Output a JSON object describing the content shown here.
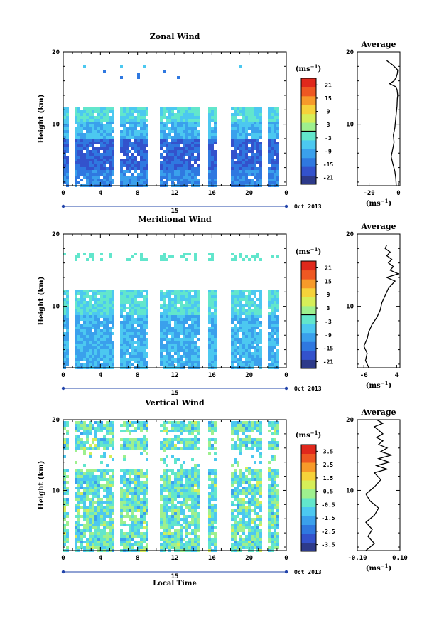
{
  "footer_label": "Local Time",
  "chart_data": [
    {
      "type": "heatmap",
      "title": "Zonal Wind",
      "ylabel": "Height (km)",
      "xlim": [
        0,
        24
      ],
      "ylim": [
        1.5,
        20
      ],
      "x_tick_labels": [
        "0",
        "4",
        "8",
        "12",
        "16",
        "20",
        "0"
      ],
      "y_tick_labels": [
        "20",
        "10"
      ],
      "date_label": "15",
      "month_label": "Oct 2013",
      "colorbar": {
        "unit_base": "(ms",
        "unit_exp": "−1",
        "unit_close": ")",
        "range": [
          -24,
          24
        ],
        "ticks": [
          "21",
          "15",
          "9",
          "3",
          "-3",
          "-9",
          "-15",
          "-21"
        ],
        "contour_value": 0
      },
      "data_gaps_hours": [
        [
          0.6,
          1.0
        ],
        [
          5.4,
          5.9
        ],
        [
          8.9,
          10.1
        ],
        [
          14.6,
          15.4
        ],
        [
          16.4,
          18.0
        ],
        [
          21.4,
          22.0
        ],
        [
          23.2,
          24.0
        ]
      ],
      "upper_cutoff_km": 12.5,
      "colormap": [
        "#2d3a8a",
        "#3352cc",
        "#2f78e0",
        "#3aa0ec",
        "#4cc8f0",
        "#62e6cc",
        "#9ef08e",
        "#d6ee58",
        "#f6d23a",
        "#f79a2a",
        "#ee5822",
        "#e0281c"
      ],
      "profile": {
        "title": "Average",
        "xlabel_base": "(ms",
        "xlabel_exp": "−1",
        "xlabel_close": ")",
        "xlim": [
          -28,
          1
        ],
        "x_tick_labels": [
          "-20",
          "0"
        ],
        "y_tick_labels": [
          "20",
          "10"
        ],
        "height": [
          1.5,
          2.5,
          3.5,
          4.5,
          5.5,
          6.5,
          7.5,
          8.5,
          9.5,
          10.5,
          11.5,
          12.5,
          13.5,
          14.0,
          14.8,
          15.2,
          15.6,
          16.0,
          16.5,
          17.0,
          17.5,
          18.2,
          18.8
        ],
        "values": [
          -1.5,
          -1.8,
          -2.5,
          -3.8,
          -5.0,
          -4.0,
          -3.0,
          -3.5,
          -2.5,
          -2.0,
          -1.5,
          -1.0,
          -0.8,
          -0.5,
          -1.0,
          -2.0,
          -6.0,
          -3.0,
          -1.5,
          -0.8,
          -0.5,
          -4.0,
          -8.0
        ]
      }
    },
    {
      "type": "heatmap",
      "title": "Meridional Wind",
      "ylabel": "Height (km)",
      "xlim": [
        0,
        24
      ],
      "ylim": [
        1.5,
        20
      ],
      "x_tick_labels": [
        "0",
        "4",
        "8",
        "12",
        "16",
        "20",
        "0"
      ],
      "y_tick_labels": [
        "20",
        "10"
      ],
      "date_label": "15",
      "month_label": "Oct 2013",
      "colorbar": {
        "unit_base": "(ms",
        "unit_exp": "−1",
        "unit_close": ")",
        "range": [
          -24,
          24
        ],
        "ticks": [
          "21",
          "15",
          "9",
          "3",
          "-3",
          "-9",
          "-15",
          "-21"
        ],
        "contour_value": 0
      },
      "data_gaps_hours": [
        [
          0.6,
          1.0
        ],
        [
          5.4,
          5.9
        ],
        [
          8.9,
          10.1
        ],
        [
          14.6,
          15.4
        ],
        [
          16.4,
          18.0
        ],
        [
          21.4,
          22.0
        ],
        [
          23.2,
          24.0
        ]
      ],
      "upper_cutoff_km": 12.5,
      "colormap": [
        "#2d3a8a",
        "#3352cc",
        "#2f78e0",
        "#3aa0ec",
        "#4cc8f0",
        "#62e6cc",
        "#9ef08e",
        "#d6ee58",
        "#f6d23a",
        "#f79a2a",
        "#ee5822",
        "#e0281c"
      ],
      "profile": {
        "title": "Average",
        "xlabel_base": "(ms",
        "xlabel_exp": "−1",
        "xlabel_close": ")",
        "xlim": [
          -8,
          5
        ],
        "x_tick_labels": [
          "-6",
          "4"
        ],
        "y_tick_labels": [
          "20",
          "10"
        ],
        "height": [
          1.5,
          2.5,
          3.5,
          4.5,
          5.5,
          6.5,
          7.5,
          8.5,
          9.5,
          10.5,
          11.5,
          12.5,
          13.0,
          13.5,
          14.0,
          14.5,
          15.0,
          15.5,
          16.0,
          16.5,
          17.0,
          17.5,
          18.0,
          18.5
        ],
        "values": [
          -4.5,
          -5.5,
          -5.0,
          -6.0,
          -5.0,
          -4.5,
          -3.5,
          -2.0,
          -1.0,
          -0.5,
          0.5,
          1.5,
          2.5,
          3.5,
          1.0,
          4.5,
          2.0,
          3.0,
          1.5,
          2.5,
          1.0,
          2.0,
          0.5,
          1.0
        ]
      }
    },
    {
      "type": "heatmap",
      "title": "Vertical Wind",
      "ylabel": "Height (km)",
      "xlabel": "Local Time",
      "xlim": [
        0,
        24
      ],
      "ylim": [
        1.5,
        20
      ],
      "x_tick_labels": [
        "0",
        "4",
        "8",
        "12",
        "16",
        "20",
        "0"
      ],
      "y_tick_labels": [
        "20",
        "10"
      ],
      "date_label": "15",
      "month_label": "Oct 2013",
      "colorbar": {
        "unit_base": "(ms",
        "unit_exp": "−1",
        "unit_close": ")",
        "range": [
          -4,
          4
        ],
        "ticks": [
          "3.5",
          "2.5",
          "1.5",
          "0.5",
          "-0.5",
          "-1.5",
          "-2.5",
          "-3.5"
        ]
      },
      "data_gaps_hours": [
        [
          0.6,
          1.0
        ],
        [
          5.4,
          5.9
        ],
        [
          8.9,
          10.1
        ],
        [
          14.6,
          15.4
        ],
        [
          16.4,
          18.0
        ],
        [
          21.4,
          22.0
        ],
        [
          23.2,
          24.0
        ]
      ],
      "upper_cutoff_km": 20,
      "colormap": [
        "#2d3a8a",
        "#3352cc",
        "#2f78e0",
        "#3aa0ec",
        "#4cc8f0",
        "#62e6cc",
        "#9ef08e",
        "#d6ee58",
        "#f6d23a",
        "#f79a2a",
        "#ee5822",
        "#e0281c"
      ],
      "profile": {
        "title": "Average",
        "xlabel_base": "(ms",
        "xlabel_exp": "−1",
        "xlabel_close": ")",
        "xlim": [
          -0.1,
          0.1
        ],
        "x_tick_labels": [
          "-0.10",
          "0.10"
        ],
        "y_tick_labels": [
          "20",
          "10"
        ],
        "height": [
          1.5,
          2.5,
          3.5,
          4.5,
          5.5,
          6.5,
          7.5,
          8.5,
          9.5,
          10.5,
          11.5,
          12.5,
          13.0,
          13.5,
          14.0,
          14.5,
          15.0,
          15.5,
          16.0,
          16.5,
          17.0,
          17.5,
          18.0,
          18.5,
          19.0,
          19.5,
          20.0
        ],
        "values": [
          -0.06,
          -0.02,
          -0.05,
          -0.03,
          -0.06,
          -0.02,
          0.0,
          -0.04,
          -0.06,
          -0.02,
          0.01,
          -0.02,
          0.04,
          -0.01,
          0.05,
          0.0,
          0.06,
          0.01,
          0.04,
          0.0,
          0.02,
          -0.01,
          0.02,
          0.0,
          -0.02,
          0.02,
          -0.01
        ]
      }
    }
  ]
}
